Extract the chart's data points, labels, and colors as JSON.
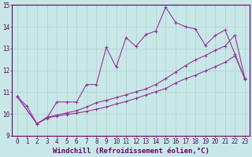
{
  "xlabel": "Windchill (Refroidissement éolien,°C)",
  "x_ticks": [
    0,
    1,
    2,
    3,
    4,
    5,
    6,
    7,
    8,
    9,
    10,
    11,
    12,
    13,
    14,
    15,
    16,
    17,
    18,
    19,
    20,
    21,
    22,
    23
  ],
  "ylim": [
    9,
    15
  ],
  "xlim": [
    -0.5,
    23.5
  ],
  "y_ticks": [
    9,
    10,
    11,
    12,
    13,
    14,
    15
  ],
  "line1_x": [
    0,
    1,
    2,
    3,
    4,
    5,
    6,
    7,
    8,
    9,
    10,
    11,
    12,
    13,
    14,
    15,
    16,
    17,
    18,
    19,
    20,
    21,
    22,
    23
  ],
  "line1_y": [
    10.8,
    10.35,
    9.55,
    9.8,
    10.55,
    10.55,
    10.55,
    11.35,
    11.35,
    13.05,
    12.15,
    13.5,
    13.1,
    13.65,
    13.8,
    14.9,
    14.2,
    14.0,
    13.9,
    13.15,
    13.6,
    13.85,
    12.75,
    11.6
  ],
  "line2_x": [
    0,
    2,
    3,
    4,
    5,
    6,
    7,
    8,
    9,
    10,
    11,
    12,
    13,
    14,
    15,
    16,
    17,
    18,
    19,
    20,
    21,
    22,
    23
  ],
  "line2_y": [
    10.8,
    9.55,
    9.85,
    9.95,
    10.05,
    10.15,
    10.32,
    10.52,
    10.63,
    10.75,
    10.88,
    11.02,
    11.15,
    11.35,
    11.62,
    11.92,
    12.22,
    12.48,
    12.68,
    12.92,
    13.12,
    13.62,
    11.62
  ],
  "line3_x": [
    0,
    2,
    3,
    4,
    5,
    6,
    7,
    8,
    9,
    10,
    11,
    12,
    13,
    14,
    15,
    16,
    17,
    18,
    19,
    20,
    21,
    22,
    23
  ],
  "line3_y": [
    10.8,
    9.55,
    9.82,
    9.9,
    9.98,
    10.04,
    10.12,
    10.22,
    10.32,
    10.46,
    10.57,
    10.72,
    10.87,
    11.02,
    11.17,
    11.42,
    11.62,
    11.78,
    11.97,
    12.17,
    12.37,
    12.67,
    11.62
  ],
  "line_color": "#993399",
  "marker": "+",
  "bg_color": "#c8e8e8",
  "grid_color": "#b0d0d0",
  "axis_color": "#660066",
  "tick_color": "#660066",
  "label_fontsize": 6.5,
  "tick_fontsize": 5.5
}
